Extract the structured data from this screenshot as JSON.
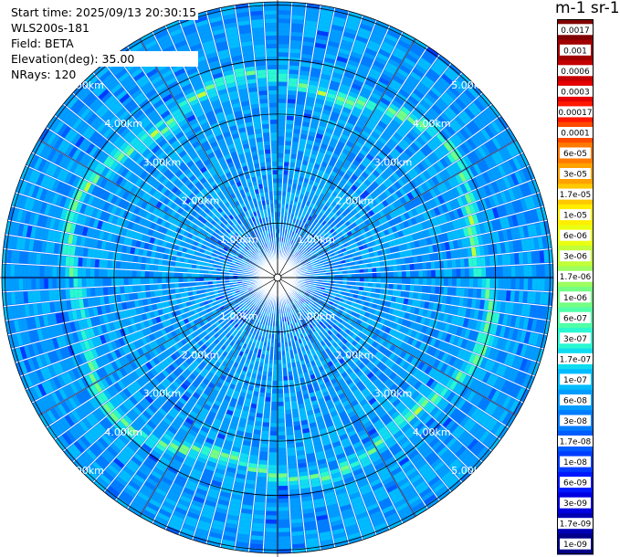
{
  "header": {
    "start_time": "Start time: 2025/09/13 20:30:15",
    "instrument": "WLS200s-181",
    "field": "Field: BETA",
    "elevation": "Elevation(deg): 35.00",
    "nrays": "NRays: 120"
  },
  "units_label": "m-1 sr-1",
  "chart_data": {
    "type": "heatmap",
    "projection": "polar (PPI scan)",
    "field": "BETA",
    "elevation_deg": 35.0,
    "n_rays": 120,
    "range_rings_km": [
      1.0,
      2.0,
      3.0,
      4.0,
      5.0
    ],
    "range_ring_labels": [
      "1.00km",
      "2.00km",
      "3.00km",
      "4.00km",
      "5.00km"
    ],
    "max_range_km": 5.0,
    "colorbar": {
      "scale": "log",
      "ticks": [
        "0.0017",
        "0.001",
        "0.0006",
        "0.0003",
        "0.00017",
        "0.0001",
        "6e-05",
        "3e-05",
        "1.7e-05",
        "1e-05",
        "6e-06",
        "3e-06",
        "1.7e-06",
        "1e-06",
        "6e-07",
        "3e-07",
        "1.7e-07",
        "1e-07",
        "6e-08",
        "3e-08",
        "1.7e-08",
        "1e-08",
        "6e-09",
        "3e-09",
        "1.7e-09",
        "1e-09"
      ],
      "colors": [
        "#800000",
        "#a00000",
        "#c40000",
        "#e40000",
        "#ff1800",
        "#ff4a00",
        "#ff7a00",
        "#ffa200",
        "#ffc800",
        "#ffee00",
        "#eaff12",
        "#c2ff38",
        "#9cff5e",
        "#74ff84",
        "#50ffa8",
        "#2af8d0",
        "#10dcf0",
        "#00bcff",
        "#009cff",
        "#007cff",
        "#005cff",
        "#003cff",
        "#0018ff",
        "#0000e0",
        "#0000b4",
        "#000088"
      ]
    },
    "aerosol_ring_km": 3.7,
    "typical_backscatter": "3e-08"
  }
}
